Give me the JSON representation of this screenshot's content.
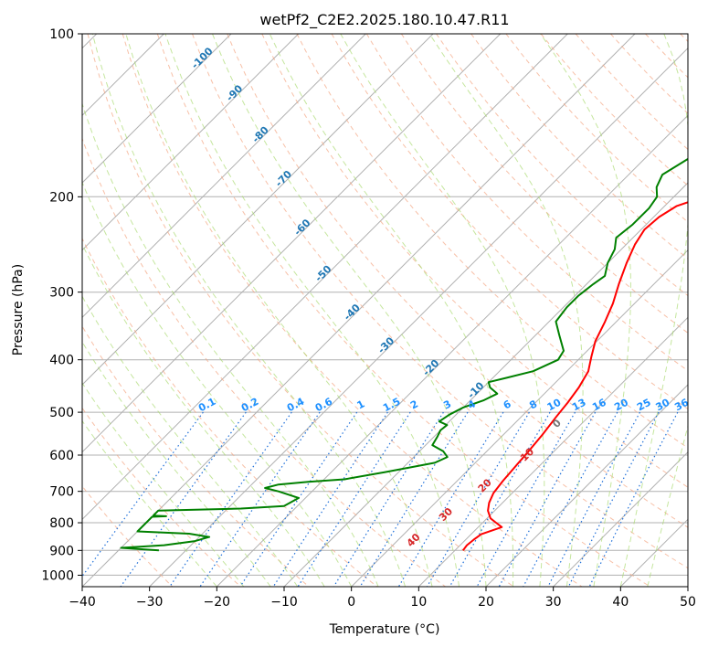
{
  "chart_data": {
    "type": "line",
    "title": "wetPf2_C2E2.2025.180.10.47.R11",
    "xlabel": "Temperature (°C)",
    "ylabel": "Pressure (hPa)",
    "xlim": [
      -40,
      50
    ],
    "ylim": [
      1050,
      100
    ],
    "y_scale": "log",
    "grid": true,
    "x_ticks": [
      "−40",
      "−30",
      "−20",
      "−10",
      "0",
      "10",
      "20",
      "30",
      "40",
      "50"
    ],
    "y_ticks": [
      {
        "p": 100,
        "label": "100"
      },
      {
        "p": 200,
        "label": "200"
      },
      {
        "p": 300,
        "label": "300"
      },
      {
        "p": 400,
        "label": "400"
      },
      {
        "p": 500,
        "label": "500"
      },
      {
        "p": 600,
        "label": "600"
      },
      {
        "p": 700,
        "label": "700"
      },
      {
        "p": 800,
        "label": "800"
      },
      {
        "p": 900,
        "label": "900"
      },
      {
        "p": 1000,
        "label": "1000"
      }
    ],
    "series": [
      {
        "color": "#ff0000",
        "points": [
          [
            11.2,
            900
          ],
          [
            11.0,
            880
          ],
          [
            11.2,
            860
          ],
          [
            11.5,
            840
          ],
          [
            13.5,
            815
          ],
          [
            12.0,
            800
          ],
          [
            10.5,
            785
          ],
          [
            9.0,
            760
          ],
          [
            8.0,
            735
          ],
          [
            7.2,
            705
          ],
          [
            6.8,
            670
          ],
          [
            6.5,
            630
          ],
          [
            6.2,
            590
          ],
          [
            5.8,
            550
          ],
          [
            5.2,
            510
          ],
          [
            4.8,
            480
          ],
          [
            4.2,
            450
          ],
          [
            3.2,
            420
          ],
          [
            1.5,
            395
          ],
          [
            -0.2,
            370
          ],
          [
            -1.7,
            340
          ],
          [
            -3.2,
            315
          ],
          [
            -5.2,
            290
          ],
          [
            -7.2,
            265
          ],
          [
            -8.7,
            245
          ],
          [
            -9.5,
            230
          ],
          [
            -9.2,
            218
          ],
          [
            -8.2,
            208
          ],
          [
            -5.5,
            200
          ],
          [
            -2.2,
            192
          ],
          [
            0.5,
            183
          ],
          [
            3.5,
            172
          ],
          [
            7.5,
            158
          ],
          [
            12.5,
            142
          ],
          [
            17.0,
            128
          ],
          [
            20.0,
            115
          ],
          [
            23.5,
            100
          ]
        ]
      },
      {
        "color": "#008000",
        "points": [
          [
            -34,
            900
          ],
          [
            -37,
            895
          ],
          [
            -40,
            890
          ],
          [
            -34,
            880
          ],
          [
            -30,
            865
          ],
          [
            -28.5,
            850
          ],
          [
            -32,
            838
          ],
          [
            -40,
            830
          ],
          [
            -40,
            800
          ],
          [
            -40,
            780
          ],
          [
            -38,
            778
          ],
          [
            -40,
            776
          ],
          [
            -40,
            760
          ],
          [
            -28,
            753
          ],
          [
            -22,
            745
          ],
          [
            -21,
            720
          ],
          [
            -25,
            700
          ],
          [
            -27.5,
            690
          ],
          [
            -26,
            680
          ],
          [
            -22,
            672
          ],
          [
            -17,
            665
          ],
          [
            -12,
            645
          ],
          [
            -6,
            620
          ],
          [
            -5,
            605
          ],
          [
            -6.5,
            590
          ],
          [
            -9,
            575
          ],
          [
            -9.5,
            555
          ],
          [
            -10,
            540
          ],
          [
            -9.8,
            528
          ],
          [
            -11.5,
            520
          ],
          [
            -11,
            505
          ],
          [
            -10,
            490
          ],
          [
            -8,
            475
          ],
          [
            -7,
            462
          ],
          [
            -9,
            450
          ],
          [
            -10,
            440
          ],
          [
            -8,
            432
          ],
          [
            -5,
            420
          ],
          [
            -3,
            400
          ],
          [
            -3.5,
            385
          ],
          [
            -6.5,
            360
          ],
          [
            -9,
            340
          ],
          [
            -9.5,
            320
          ],
          [
            -9.5,
            305
          ],
          [
            -9,
            290
          ],
          [
            -8.5,
            280
          ],
          [
            -10,
            265
          ],
          [
            -11,
            250
          ],
          [
            -12.5,
            238
          ],
          [
            -12,
            225
          ],
          [
            -12,
            210
          ],
          [
            -12.5,
            200
          ],
          [
            -14,
            192
          ],
          [
            -15,
            182
          ],
          [
            -13.5,
            170
          ],
          [
            -12.5,
            160
          ],
          [
            -12.5,
            152
          ],
          [
            -11,
            142
          ],
          [
            -8.5,
            130
          ],
          [
            -6,
            120
          ],
          [
            -4,
            110
          ],
          [
            -2,
            100
          ]
        ]
      }
    ],
    "dry_adiabat_labels": [
      "-100",
      "-90",
      "-80",
      "-70",
      "-60",
      "-50",
      "-40",
      "-30",
      "-20",
      "-10"
    ],
    "moist_adiabat_labels": [
      "0",
      "10",
      "20",
      "30",
      "40"
    ],
    "mixing_ratio_labels": [
      "0.1",
      "0.2",
      "0.4",
      "0.6",
      "1",
      "1.5",
      "2",
      "3",
      "4",
      "6",
      "8",
      "10",
      "13",
      "16",
      "20",
      "25",
      "30",
      "36"
    ]
  }
}
